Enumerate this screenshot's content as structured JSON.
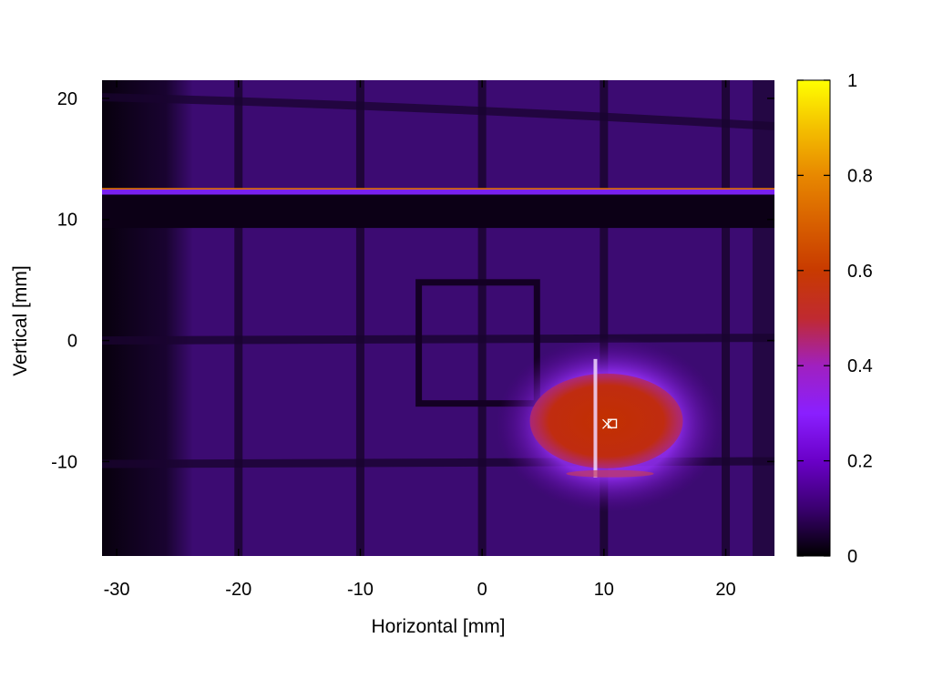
{
  "chart_data": {
    "type": "heatmap",
    "title": "",
    "xlabel": "Horizontal [mm]",
    "ylabel": "Vertical [mm]",
    "xlim": [
      -31.2,
      24.0
    ],
    "ylim": [
      -17.8,
      21.5
    ],
    "x_ticks": [
      -30,
      -20,
      -10,
      0,
      10,
      20
    ],
    "y_ticks": [
      -10,
      0,
      10,
      20
    ],
    "colorbar": {
      "range": [
        0,
        1
      ],
      "ticks": [
        0,
        0.2,
        0.4,
        0.6,
        0.8,
        1
      ],
      "palette": [
        "#000000",
        "#5a0098",
        "#8a1fff",
        "#c42a00",
        "#e07000",
        "#ffff00"
      ]
    },
    "grid_lines": {
      "vertical_x": [
        -20,
        -10,
        0,
        10,
        20
      ],
      "horizontal_y": [
        0,
        -10.2
      ],
      "top_bar_y": 10.2,
      "top_curve_y": 19.5
    },
    "square_outline": {
      "x": [
        -5.2,
        4.5
      ],
      "y": [
        -5.2,
        4.8
      ]
    },
    "top_line_y": 12.5,
    "hot_spot": {
      "center": [
        10.5,
        -6.8
      ],
      "peak": 0.55
    },
    "marker": {
      "x": 10.5,
      "y": -6.9
    },
    "grid": false,
    "legend": "colorbar-right"
  }
}
